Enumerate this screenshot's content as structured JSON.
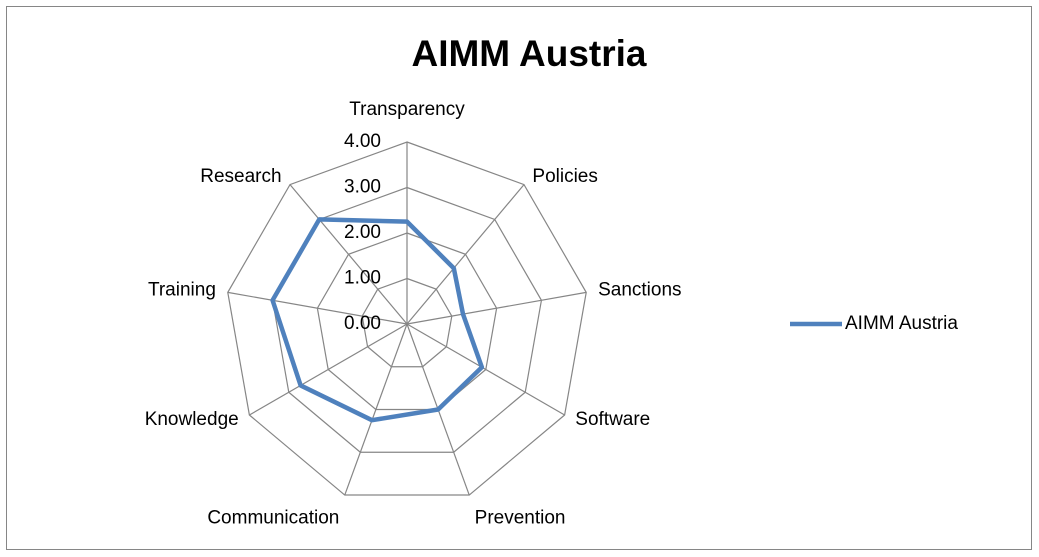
{
  "chart_data": {
    "type": "radar",
    "title": "AIMM Austria",
    "categories": [
      "Transparency",
      "Policies",
      "Sanctions",
      "Software",
      "Prevention",
      "Communication",
      "Knowledge",
      "Training",
      "Research"
    ],
    "series": [
      {
        "name": "AIMM Austria",
        "color": "#4f81bd",
        "values": [
          2.25,
          1.6,
          1.25,
          1.9,
          2.0,
          2.25,
          2.7,
          3.0,
          3.0
        ]
      }
    ],
    "rlim": [
      0,
      4
    ],
    "rticks": [
      {
        "value": 0,
        "label": "0.00"
      },
      {
        "value": 1,
        "label": "1.00"
      },
      {
        "value": 2,
        "label": "2.00"
      },
      {
        "value": 3,
        "label": "3.00"
      },
      {
        "value": 4,
        "label": "4.00"
      }
    ],
    "grid": true,
    "legend": "right"
  }
}
